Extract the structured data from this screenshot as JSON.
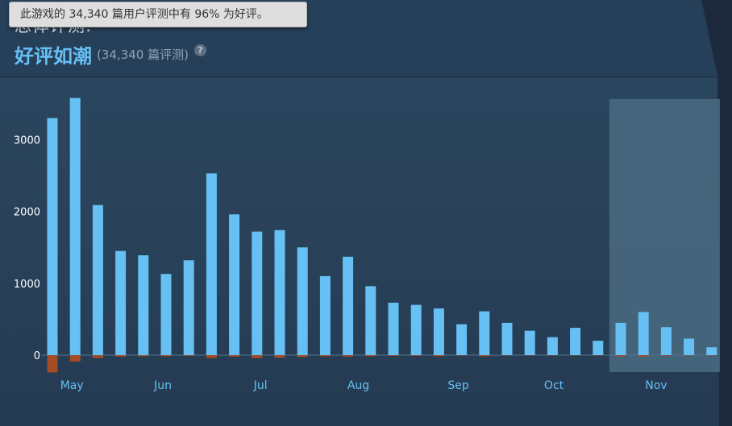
{
  "header": {
    "overall_label": "总体评测:",
    "rating": "好评如潮",
    "count": "(34,340 篇评测)",
    "help_glyph": "?"
  },
  "tooltip": {
    "text": "此游戏的 34,340 篇用户评测中有 96% 为好评。"
  },
  "colors": {
    "positive": "#66c0f4",
    "negative": "#a34c25",
    "highlight": "#4a6b82",
    "month_label": "#66c0f4",
    "tick_label": "#ffffff"
  },
  "chart_data": {
    "type": "bar",
    "title": "",
    "xlabel": "",
    "ylabel": "",
    "ylim": [
      -240,
      3600
    ],
    "yticks": [
      0,
      1000,
      2000,
      3000
    ],
    "month_labels": [
      "May",
      "Jun",
      "Jul",
      "Aug",
      "Sep",
      "Oct",
      "Nov"
    ],
    "month_anchor_index": [
      1,
      5,
      9.3,
      13.6,
      18,
      22.2,
      26.7
    ],
    "highlight_range_index": [
      25,
      29
    ],
    "series": [
      {
        "values": [
          3300,
          3580,
          2090,
          1450,
          1390,
          1130,
          1320,
          2530,
          1960,
          1720,
          1740,
          1500,
          1100,
          1370,
          960,
          730,
          700,
          650,
          430,
          610,
          450,
          340,
          250,
          380,
          200,
          450,
          600,
          390,
          230,
          110
        ]
      },
      {
        "values": [
          -240,
          -90,
          -40,
          -20,
          -15,
          -15,
          -10,
          -40,
          -20,
          -40,
          -35,
          -25,
          -15,
          -20,
          -15,
          -10,
          -10,
          -15,
          -5,
          -15,
          -5,
          -5,
          -5,
          -5,
          -5,
          -15,
          -20,
          -10,
          -5,
          -5
        ]
      }
    ]
  }
}
